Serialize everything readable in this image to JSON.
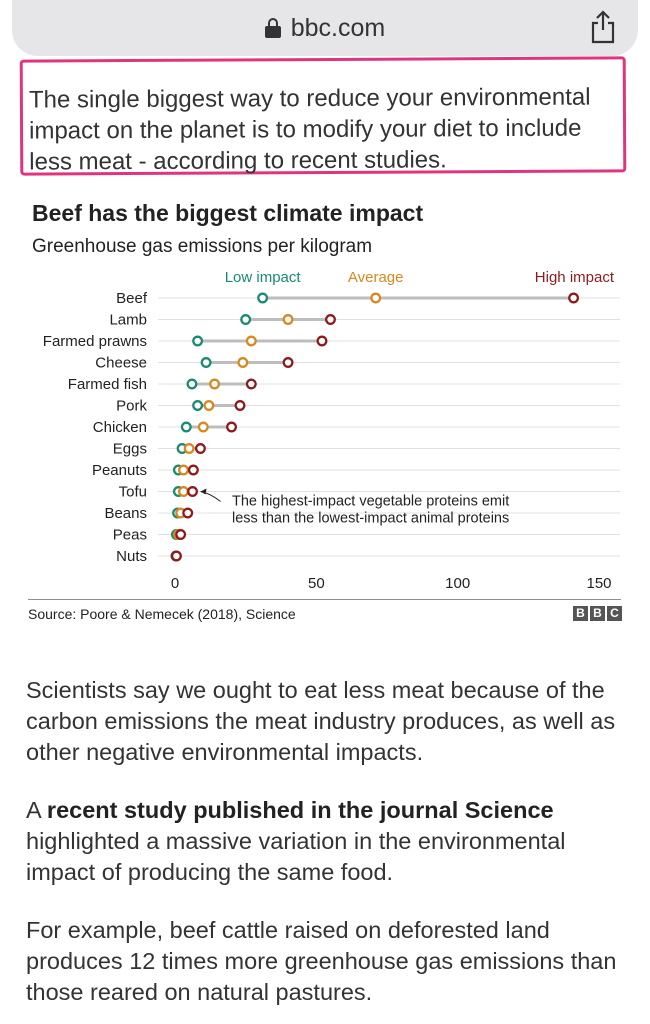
{
  "browser": {
    "url": "bbc.com"
  },
  "intro_text": "The single biggest way to reduce your environmental impact on the planet is to modify your diet to include less meat - according to recent studies.",
  "chart_data": {
    "type": "dot-range",
    "title": "Beef has the biggest climate impact",
    "subtitle": "Greenhouse gas emissions per kilogram",
    "legend": {
      "low": "Low impact",
      "average": "Average",
      "high": "High impact"
    },
    "colors": {
      "low": "#1a8a73",
      "average": "#d6891f",
      "high": "#8e1b1b",
      "range": "#bdbdbd"
    },
    "xlim": [
      0,
      150
    ],
    "xticks": [
      0,
      50,
      100,
      150
    ],
    "xtick_labels": [
      "0",
      "50",
      "100",
      "150"
    ],
    "categories": [
      "Beef",
      "Lamb",
      "Farmed prawns",
      "Cheese",
      "Farmed fish",
      "Pork",
      "Chicken",
      "Eggs",
      "Peanuts",
      "Tofu",
      "Beans",
      "Peas",
      "Nuts"
    ],
    "low": [
      31,
      25,
      8,
      11,
      6,
      8,
      4,
      2.5,
      1.2,
      1.2,
      0.9,
      0.5,
      0.3
    ],
    "average": [
      71,
      40,
      27,
      24,
      14,
      12,
      10,
      5,
      3,
      3,
      2,
      1.2,
      0.5
    ],
    "high": [
      141,
      55,
      52,
      40,
      27,
      23,
      20,
      9,
      6.5,
      6.2,
      4.5,
      2,
      0.5
    ],
    "annotation": {
      "line1": "The highest-impact vegetable proteins emit",
      "line2": "less than the lowest-impact animal proteins"
    }
  },
  "source": "Source: Poore & Nemecek (2018), Science",
  "logo": [
    "B",
    "B",
    "C"
  ],
  "paragraphs": {
    "p1": "Scientists say we ought to eat less meat because of the carbon emissions the meat industry produces, as well as other negative environmental impacts.",
    "p2_prefix": "A ",
    "p2_link": "recent study published in the journal Science",
    "p2_rest": " highlighted a massive variation in the environmental impact of producing the same food.",
    "p3": "For example, beef cattle raised on deforested land produces 12 times more greenhouse gas emissions than those reared on natural pastures."
  }
}
